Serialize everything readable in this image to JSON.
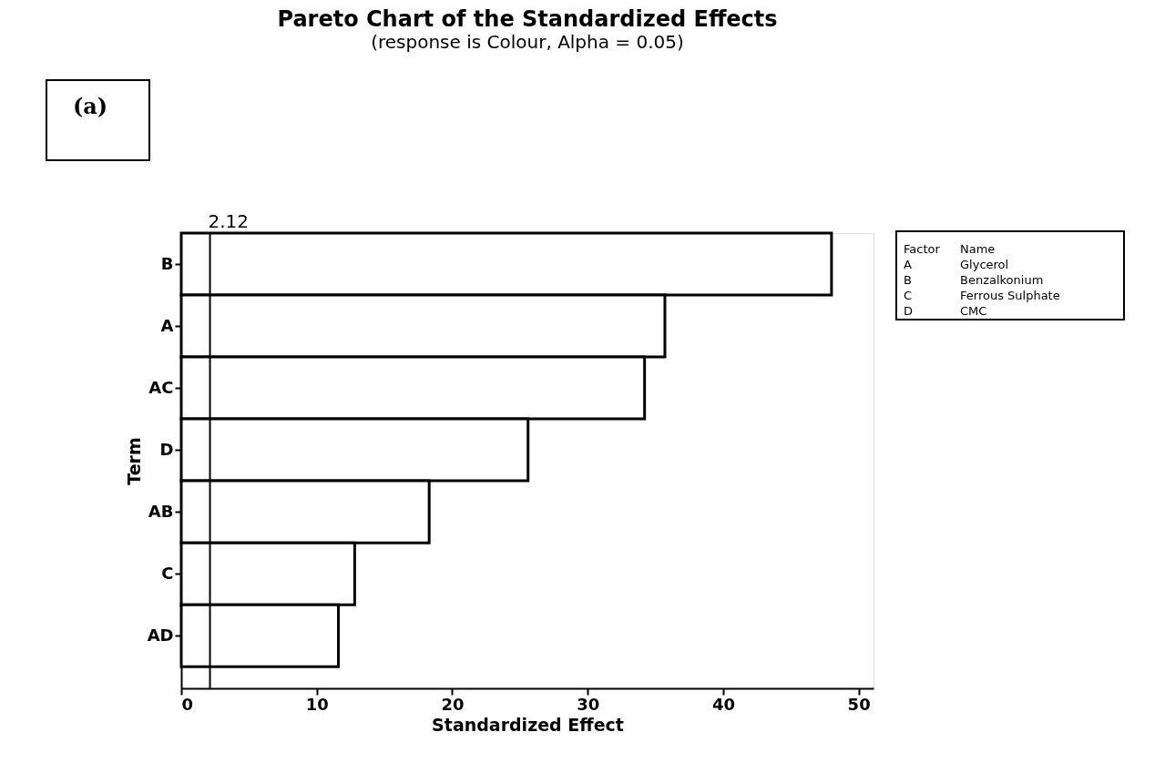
{
  "chart_data": {
    "type": "bar",
    "orientation": "horizontal",
    "title": "Pareto Chart of the Standardized Effects",
    "subtitle": "(response is Colour, Alpha = 0.05)",
    "xlabel": "Standardized Effect",
    "ylabel": "Term",
    "categories": [
      "B",
      "A",
      "AC",
      "D",
      "AB",
      "C",
      "AD"
    ],
    "values": [
      48.0,
      35.7,
      34.2,
      25.6,
      18.3,
      12.8,
      11.6
    ],
    "color": "#ffffff",
    "xlim": [
      0,
      51.1
    ],
    "xticks": [
      0,
      10,
      20,
      30,
      40,
      50
    ],
    "grid": false,
    "legend": false,
    "ref_lines": [
      {
        "axis": "x",
        "value": 2.12,
        "label": "2.12"
      }
    ],
    "annotations": [
      "(a)",
      "Factor",
      "Name",
      "A",
      "Glycerol",
      "B",
      "Benzalkonium",
      "C",
      "Ferrous Sulphate",
      "D",
      "CMC"
    ]
  }
}
